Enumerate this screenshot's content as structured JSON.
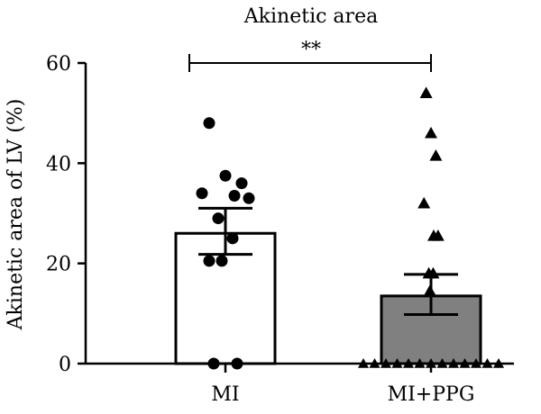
{
  "chart_data": {
    "type": "bar",
    "title": "Akinetic area",
    "ylabel": "Akinetic area of LV (%)",
    "xlabel": "",
    "ylim": [
      0,
      60
    ],
    "yticks": [
      0,
      20,
      40,
      60
    ],
    "categories": [
      "MI",
      "MI+PPG"
    ],
    "values": [
      26,
      13.5
    ],
    "error_upper": [
      31,
      17.8
    ],
    "error_lower": [
      21.8,
      9.8
    ],
    "bar_colors": [
      "#ffffff",
      "#808080"
    ],
    "significance": {
      "label": "**",
      "between": [
        "MI",
        "MI+PPG"
      ],
      "y": 60
    },
    "points": [
      {
        "group": "MI",
        "marker": "circle",
        "values": [
          48,
          37.5,
          36,
          34,
          33.5,
          33,
          29,
          25,
          20.5,
          20.5,
          0,
          0
        ]
      },
      {
        "group": "MI+PPG",
        "marker": "triangle",
        "values": [
          54,
          46,
          41.5,
          32,
          25.5,
          25.5,
          18,
          18,
          14.5,
          0,
          0,
          0,
          0,
          0,
          0,
          0,
          0,
          0,
          0,
          0,
          0,
          0
        ]
      }
    ],
    "grid": false
  }
}
